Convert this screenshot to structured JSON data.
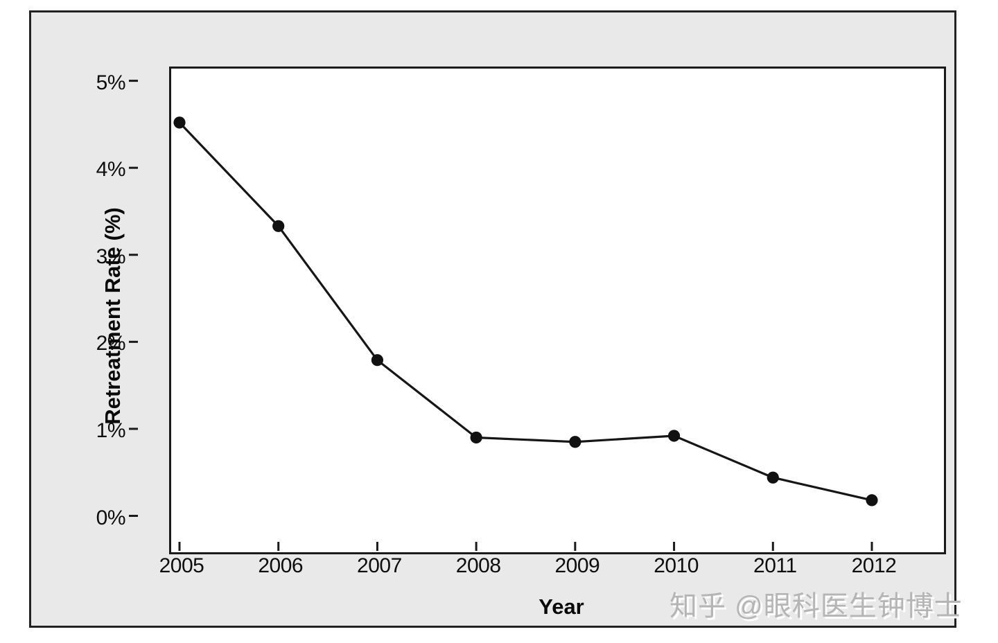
{
  "chart_data": {
    "type": "line",
    "title": "",
    "xlabel": "Year",
    "ylabel": "Retreatment Rate (%)",
    "categories": [
      "2005",
      "2006",
      "2007",
      "2008",
      "2009",
      "2010",
      "2011",
      "2012"
    ],
    "series": [
      {
        "name": "Retreatment Rate",
        "values": [
          4.52,
          3.33,
          1.79,
          0.9,
          0.85,
          0.92,
          0.44,
          0.18
        ]
      }
    ],
    "ylim": [
      0,
      5
    ],
    "ytick_values": [
      0,
      1,
      2,
      3,
      4,
      5
    ],
    "ytick_labels": [
      "0%",
      "1%",
      "2%",
      "3%",
      "4%",
      "5%"
    ],
    "grid": false,
    "legend_position": "none",
    "line_color": "#161616",
    "marker": "circle",
    "marker_color": "#111111",
    "plot_background": "#ffffff",
    "frame_background": "#e9e9e9"
  },
  "watermark": {
    "text": "知乎 @眼科医生钟博士"
  }
}
